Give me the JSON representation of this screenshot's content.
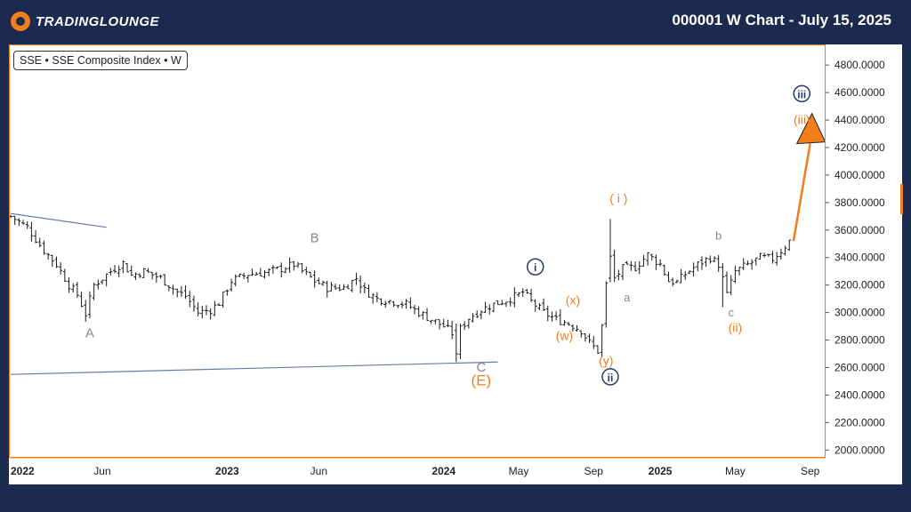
{
  "header": {
    "brand": "TradingLounge",
    "brand_display": "TRADINGLOUNGE",
    "title": "000001 W Chart - July 15, 2025"
  },
  "legend": {
    "text": "SSE • SSE Composite Index • W"
  },
  "colors": {
    "background": "#1b2a4e",
    "accent": "#f07f1b",
    "navy_label": "#2b3a67",
    "gray_label": "#888888",
    "bars": "#1a1a1a",
    "trendline": "#6a7aa8"
  },
  "chart_data": {
    "type": "ohlc",
    "title": "SSE Composite Index",
    "timeframe": "W",
    "ylim": [
      1950,
      4950
    ],
    "y_ticks": [
      "4800.0000",
      "4600.0000",
      "4400.0000",
      "4200.0000",
      "4000.0000",
      "3800.0000",
      "3600.0000",
      "3400.0000",
      "3200.0000",
      "3000.0000",
      "2800.0000",
      "2600.0000",
      "2400.0000",
      "2200.0000",
      "2000.0000"
    ],
    "y_tick_values": [
      4800,
      4600,
      4400,
      4200,
      4000,
      3800,
      3600,
      3400,
      3200,
      3000,
      2800,
      2600,
      2400,
      2200,
      2000
    ],
    "x_ticks": [
      {
        "label": "2022",
        "t": 0,
        "bold": true
      },
      {
        "label": "Jun",
        "t": 22,
        "bold": false
      },
      {
        "label": "2023",
        "t": 52,
        "bold": true
      },
      {
        "label": "Jun",
        "t": 74,
        "bold": false
      },
      {
        "label": "2024",
        "t": 104,
        "bold": true
      },
      {
        "label": "May",
        "t": 122,
        "bold": false
      },
      {
        "label": "Sep",
        "t": 140,
        "bold": false
      },
      {
        "label": "2025",
        "t": 156,
        "bold": true
      },
      {
        "label": "May",
        "t": 174,
        "bold": false
      },
      {
        "label": "Sep",
        "t": 192,
        "bold": false
      }
    ],
    "t_range": [
      0,
      194
    ],
    "price_path": [
      [
        0,
        3700
      ],
      [
        4,
        3620
      ],
      [
        8,
        3450
      ],
      [
        11,
        3350
      ],
      [
        14,
        3200
      ],
      [
        16,
        3130
      ],
      [
        18,
        2990
      ],
      [
        20,
        3200
      ],
      [
        24,
        3300
      ],
      [
        27,
        3360
      ],
      [
        29,
        3270
      ],
      [
        32,
        3300
      ],
      [
        36,
        3250
      ],
      [
        40,
        3150
      ],
      [
        42,
        3120
      ],
      [
        45,
        3000
      ],
      [
        48,
        3020
      ],
      [
        50,
        3070
      ],
      [
        53,
        3230
      ],
      [
        57,
        3280
      ],
      [
        61,
        3290
      ],
      [
        65,
        3320
      ],
      [
        68,
        3350
      ],
      [
        70,
        3300
      ],
      [
        73,
        3230
      ],
      [
        76,
        3180
      ],
      [
        80,
        3180
      ],
      [
        83,
        3250
      ],
      [
        85,
        3160
      ],
      [
        88,
        3100
      ],
      [
        92,
        3080
      ],
      [
        95,
        3060
      ],
      [
        98,
        3000
      ],
      [
        101,
        2950
      ],
      [
        104,
        2900
      ],
      [
        106,
        2850
      ],
      [
        107,
        2700
      ],
      [
        108,
        2880
      ],
      [
        110,
        2960
      ],
      [
        113,
        3020
      ],
      [
        116,
        3060
      ],
      [
        119,
        3090
      ],
      [
        122,
        3130
      ],
      [
        123,
        3150
      ],
      [
        125,
        3080
      ],
      [
        128,
        3000
      ],
      [
        131,
        2950
      ],
      [
        134,
        2920
      ],
      [
        137,
        2870
      ],
      [
        139,
        2780
      ],
      [
        141,
        2720
      ],
      [
        142,
        2900
      ],
      [
        143,
        3200
      ],
      [
        144,
        3410
      ],
      [
        145,
        3250
      ],
      [
        147,
        3320
      ],
      [
        150,
        3330
      ],
      [
        153,
        3420
      ],
      [
        156,
        3350
      ],
      [
        158,
        3230
      ],
      [
        160,
        3220
      ],
      [
        162,
        3280
      ],
      [
        165,
        3350
      ],
      [
        168,
        3400
      ],
      [
        170,
        3350
      ],
      [
        171,
        3250
      ],
      [
        172,
        3130
      ],
      [
        174,
        3300
      ],
      [
        177,
        3350
      ],
      [
        180,
        3400
      ],
      [
        183,
        3390
      ],
      [
        185,
        3450
      ],
      [
        187,
        3520
      ]
    ],
    "extra_bars": [
      {
        "t": 107,
        "high": 2920,
        "low": 2640,
        "open": 2870,
        "close": 2700
      },
      {
        "t": 144,
        "high": 3680,
        "low": 3220,
        "open": 3250,
        "close": 3410
      },
      {
        "t": 171,
        "high": 3360,
        "low": 3040,
        "open": 3330,
        "close": 3260
      }
    ],
    "trendlines": [
      {
        "name": "upper-trendline",
        "t1": 0,
        "v1": 3720,
        "t2": 23,
        "v2": 3620
      },
      {
        "name": "lower-trendline",
        "t1": 0,
        "v1": 2550,
        "t2": 117,
        "v2": 2640
      }
    ],
    "projection": {
      "t1": 188,
      "v1": 3520,
      "t2": 192,
      "v2": 4280
    },
    "wave_labels": [
      {
        "id": "wave-A",
        "text": "A",
        "t": 19,
        "v": 2820,
        "style": "gray"
      },
      {
        "id": "wave-B",
        "text": "B",
        "t": 73,
        "v": 3510,
        "style": "gray"
      },
      {
        "id": "wave-C",
        "text": "C",
        "t": 113,
        "v": 2570,
        "style": "gray"
      },
      {
        "id": "wave-E",
        "text": "(E)",
        "t": 113,
        "v": 2470,
        "style": "orange-big"
      },
      {
        "id": "wave-i-circle",
        "text": "i",
        "t": 126,
        "v": 3300,
        "style": "navy-circle"
      },
      {
        "id": "wave-x",
        "text": "(x)",
        "t": 135,
        "v": 3060,
        "style": "orange"
      },
      {
        "id": "wave-w",
        "text": "(w)",
        "t": 133,
        "v": 2800,
        "style": "orange"
      },
      {
        "id": "wave-y",
        "text": "(y)",
        "t": 143,
        "v": 2620,
        "style": "orange"
      },
      {
        "id": "wave-ii-circle",
        "text": "ii",
        "t": 144,
        "v": 2500,
        "style": "navy-circle"
      },
      {
        "id": "wave-i-paren",
        "text": "( i )",
        "t": 146,
        "v": 3800,
        "style": "orange"
      },
      {
        "id": "wave-a",
        "text": "a",
        "t": 148,
        "v": 3080,
        "style": "gray-small"
      },
      {
        "id": "wave-b",
        "text": "b",
        "t": 170,
        "v": 3530,
        "style": "gray-small"
      },
      {
        "id": "wave-c",
        "text": "c",
        "t": 173,
        "v": 2970,
        "style": "gray-small"
      },
      {
        "id": "wave-ii-paren",
        "text": "(ii)",
        "t": 174,
        "v": 2860,
        "style": "orange"
      },
      {
        "id": "wave-iii-paren",
        "text": "(iii)",
        "t": 190,
        "v": 4370,
        "style": "orange"
      },
      {
        "id": "wave-iii-circle",
        "text": "iii",
        "t": 190,
        "v": 4560,
        "style": "navy-circle"
      }
    ]
  }
}
